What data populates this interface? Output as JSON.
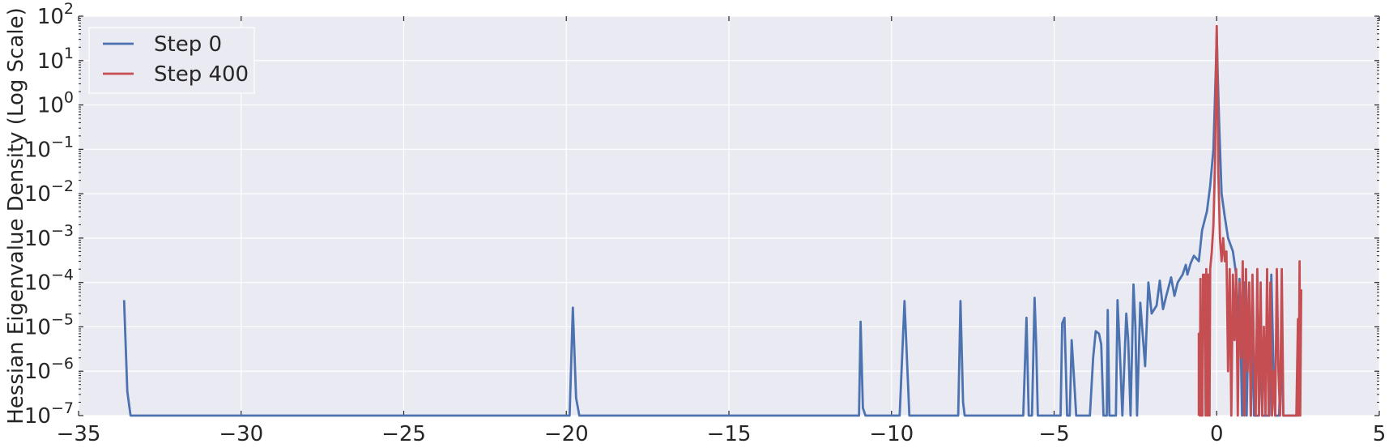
{
  "chart_data": {
    "type": "line",
    "title": "",
    "xlabel": "",
    "ylabel": "Hessian Eigenvalue Density (Log Scale)",
    "xlim": [
      -35,
      5
    ],
    "ylim": [
      1e-07,
      100
    ],
    "yscale": "log",
    "grid": true,
    "legend_position": "top-left",
    "x_ticks": [
      {
        "value": -35,
        "label": "−35"
      },
      {
        "value": -30,
        "label": "−30"
      },
      {
        "value": -25,
        "label": "−25"
      },
      {
        "value": -20,
        "label": "−20"
      },
      {
        "value": -15,
        "label": "−15"
      },
      {
        "value": -10,
        "label": "−10"
      },
      {
        "value": -5,
        "label": "−5"
      },
      {
        "value": 0,
        "label": "0"
      },
      {
        "value": 5,
        "label": "5"
      }
    ],
    "y_ticks": [
      {
        "exp": -7,
        "base": "10",
        "sup": "-7"
      },
      {
        "exp": -6,
        "base": "10",
        "sup": "-6"
      },
      {
        "exp": -5,
        "base": "10",
        "sup": "-5"
      },
      {
        "exp": -4,
        "base": "10",
        "sup": "-4"
      },
      {
        "exp": -3,
        "base": "10",
        "sup": "-3"
      },
      {
        "exp": -2,
        "base": "10",
        "sup": "-2"
      },
      {
        "exp": -1,
        "base": "10",
        "sup": "-1"
      },
      {
        "exp": 0,
        "base": "10",
        "sup": "0"
      },
      {
        "exp": 1,
        "base": "10",
        "sup": "1"
      },
      {
        "exp": 2,
        "base": "10",
        "sup": "2"
      }
    ],
    "series": [
      {
        "name": "Step 0",
        "color": "#4c72b0",
        "points": [
          [
            -33.6,
            4e-05
          ],
          [
            -33.5,
            3.5e-07
          ],
          [
            -33.4,
            1e-07
          ],
          [
            -19.9,
            1e-07
          ],
          [
            -19.8,
            2.7e-05
          ],
          [
            -19.7,
            2.5e-07
          ],
          [
            -19.6,
            1e-07
          ],
          [
            -11.0,
            1e-07
          ],
          [
            -10.95,
            1.3e-05
          ],
          [
            -10.88,
            1.5e-07
          ],
          [
            -10.8,
            1e-07
          ],
          [
            -9.75,
            1e-07
          ],
          [
            -9.6,
            3.8e-05
          ],
          [
            -9.45,
            1e-07
          ],
          [
            -7.95,
            1e-07
          ],
          [
            -7.88,
            3.8e-05
          ],
          [
            -7.8,
            2e-07
          ],
          [
            -7.75,
            1e-07
          ],
          [
            -5.95,
            1e-07
          ],
          [
            -5.85,
            1.6e-05
          ],
          [
            -5.78,
            1e-07
          ],
          [
            -5.68,
            1e-07
          ],
          [
            -5.6,
            4.5e-05
          ],
          [
            -5.55,
            4e-06
          ],
          [
            -5.5,
            1e-07
          ],
          [
            -4.8,
            1e-07
          ],
          [
            -4.75,
            1.2e-05
          ],
          [
            -4.68,
            1.6e-05
          ],
          [
            -4.6,
            1e-07
          ],
          [
            -4.52,
            1e-07
          ],
          [
            -4.46,
            5e-06
          ],
          [
            -4.4,
            1e-06
          ],
          [
            -4.32,
            1e-07
          ],
          [
            -3.9,
            1e-07
          ],
          [
            -3.8,
            2e-06
          ],
          [
            -3.72,
            8e-06
          ],
          [
            -3.62,
            7e-06
          ],
          [
            -3.55,
            4e-06
          ],
          [
            -3.48,
            1e-07
          ],
          [
            -3.38,
            1e-07
          ],
          [
            -3.35,
            2.4e-05
          ],
          [
            -3.3,
            1e-07
          ],
          [
            -3.1,
            1e-07
          ],
          [
            -3.05,
            4e-05
          ],
          [
            -2.98,
            3e-06
          ],
          [
            -2.9,
            1e-07
          ],
          [
            -2.78,
            2e-05
          ],
          [
            -2.72,
            5e-06
          ],
          [
            -2.65,
            1e-07
          ],
          [
            -2.56,
            9e-05
          ],
          [
            -2.5,
            1e-05
          ],
          [
            -2.45,
            1e-07
          ],
          [
            -2.35,
            3.5e-05
          ],
          [
            -2.2,
            1.3e-06
          ],
          [
            -2.1,
            0.0001
          ],
          [
            -2.0,
            2e-05
          ],
          [
            -1.85,
            3e-05
          ],
          [
            -1.75,
            0.00011
          ],
          [
            -1.65,
            2.5e-05
          ],
          [
            -1.55,
            5e-05
          ],
          [
            -1.4,
            0.00013
          ],
          [
            -1.3,
            5e-05
          ],
          [
            -1.2,
            0.0001
          ],
          [
            -1.05,
            0.00015
          ],
          [
            -0.95,
            0.00025
          ],
          [
            -0.9,
            0.00015
          ],
          [
            -0.8,
            0.00027
          ],
          [
            -0.7,
            0.0004
          ],
          [
            -0.55,
            0.0003
          ],
          [
            -0.45,
            0.0015
          ],
          [
            -0.3,
            0.004
          ],
          [
            -0.2,
            0.015
          ],
          [
            -0.1,
            0.1
          ],
          [
            -0.03,
            5
          ],
          [
            0.0,
            40
          ],
          [
            0.03,
            5
          ],
          [
            0.08,
            0.3
          ],
          [
            0.15,
            0.01
          ],
          [
            0.25,
            0.003
          ],
          [
            0.35,
            0.001
          ],
          [
            0.5,
            0.0005
          ],
          [
            0.6,
            0.00015
          ],
          [
            0.65,
            5e-06
          ],
          [
            0.7,
            0.00012
          ],
          [
            0.78,
            1e-07
          ],
          [
            0.85,
            0.0001
          ],
          [
            0.92,
            1e-07
          ],
          [
            1.0,
            8e-05
          ],
          [
            1.05,
            1e-07
          ],
          [
            1.1,
            1.2e-05
          ],
          [
            1.15,
            1e-07
          ],
          [
            1.3,
            1e-07
          ],
          [
            1.35,
            6e-06
          ],
          [
            1.4,
            1e-07
          ],
          [
            1.62,
            1e-07
          ],
          [
            1.68,
            0.00015
          ],
          [
            1.74,
            2e-06
          ],
          [
            1.8,
            1e-07
          ],
          [
            1.92,
            1e-07
          ],
          [
            1.98,
            3e-06
          ],
          [
            2.05,
            1e-07
          ],
          [
            2.5,
            1e-07
          ]
        ]
      },
      {
        "name": "Step 400",
        "color": "#c44e52",
        "points": [
          [
            -0.55,
            1e-07
          ],
          [
            -0.55,
            7e-06
          ],
          [
            -0.52,
            1e-07
          ],
          [
            -0.5,
            0.00012
          ],
          [
            -0.48,
            1e-07
          ],
          [
            -0.46,
            2e-06
          ],
          [
            -0.44,
            1e-07
          ],
          [
            -0.42,
            0.00015
          ],
          [
            -0.4,
            3e-05
          ],
          [
            -0.38,
            0.00015
          ],
          [
            -0.36,
            1e-05
          ],
          [
            -0.34,
            1e-07
          ],
          [
            -0.32,
            0.0002
          ],
          [
            -0.3,
            5e-06
          ],
          [
            -0.28,
            1e-07
          ],
          [
            -0.26,
            0.00015
          ],
          [
            -0.24,
            1e-06
          ],
          [
            -0.22,
            1e-07
          ],
          [
            -0.2,
            0.0002
          ],
          [
            -0.15,
            0.0005
          ],
          [
            -0.1,
            0.002
          ],
          [
            -0.05,
            0.05
          ],
          [
            -0.02,
            5
          ],
          [
            0.0,
            60
          ],
          [
            0.02,
            5
          ],
          [
            0.05,
            0.03
          ],
          [
            0.1,
            0.001
          ],
          [
            0.15,
            0.0003
          ],
          [
            0.2,
            0.001
          ],
          [
            0.25,
            0.0003
          ],
          [
            0.3,
            0.0005
          ],
          [
            0.35,
            1e-06
          ],
          [
            0.4,
            0.0002
          ],
          [
            0.45,
            1e-07
          ],
          [
            0.5,
            0.00015
          ],
          [
            0.55,
            5e-06
          ],
          [
            0.6,
            0.0002
          ],
          [
            0.65,
            1e-07
          ],
          [
            0.7,
            0.0001
          ],
          [
            0.75,
            2e-06
          ],
          [
            0.8,
            0.0003
          ],
          [
            0.85,
            1e-07
          ],
          [
            0.9,
            0.0002
          ],
          [
            0.95,
            1e-06
          ],
          [
            1.0,
            0.0001
          ],
          [
            1.05,
            1e-07
          ],
          [
            1.1,
            0.00015
          ],
          [
            1.15,
            2e-06
          ],
          [
            1.2,
            1e-07
          ],
          [
            1.25,
            0.0002
          ],
          [
            1.3,
            1e-07
          ],
          [
            1.35,
            0.0001
          ],
          [
            1.4,
            1e-07
          ],
          [
            1.45,
            1e-05
          ],
          [
            1.5,
            1e-07
          ],
          [
            1.55,
            0.0002
          ],
          [
            1.6,
            1e-07
          ],
          [
            1.65,
            0.0001
          ],
          [
            1.7,
            1e-07
          ],
          [
            1.75,
            1e-06
          ],
          [
            1.8,
            1e-07
          ],
          [
            1.85,
            0.0002
          ],
          [
            1.9,
            1e-06
          ],
          [
            1.95,
            1e-07
          ],
          [
            2.0,
            0.0002
          ],
          [
            2.05,
            1e-07
          ],
          [
            2.45,
            1e-07
          ],
          [
            2.5,
            1.5e-05
          ],
          [
            2.52,
            1e-07
          ],
          [
            2.55,
            0.0003
          ],
          [
            2.57,
            1e-07
          ],
          [
            2.6,
            7e-05
          ]
        ]
      }
    ]
  }
}
